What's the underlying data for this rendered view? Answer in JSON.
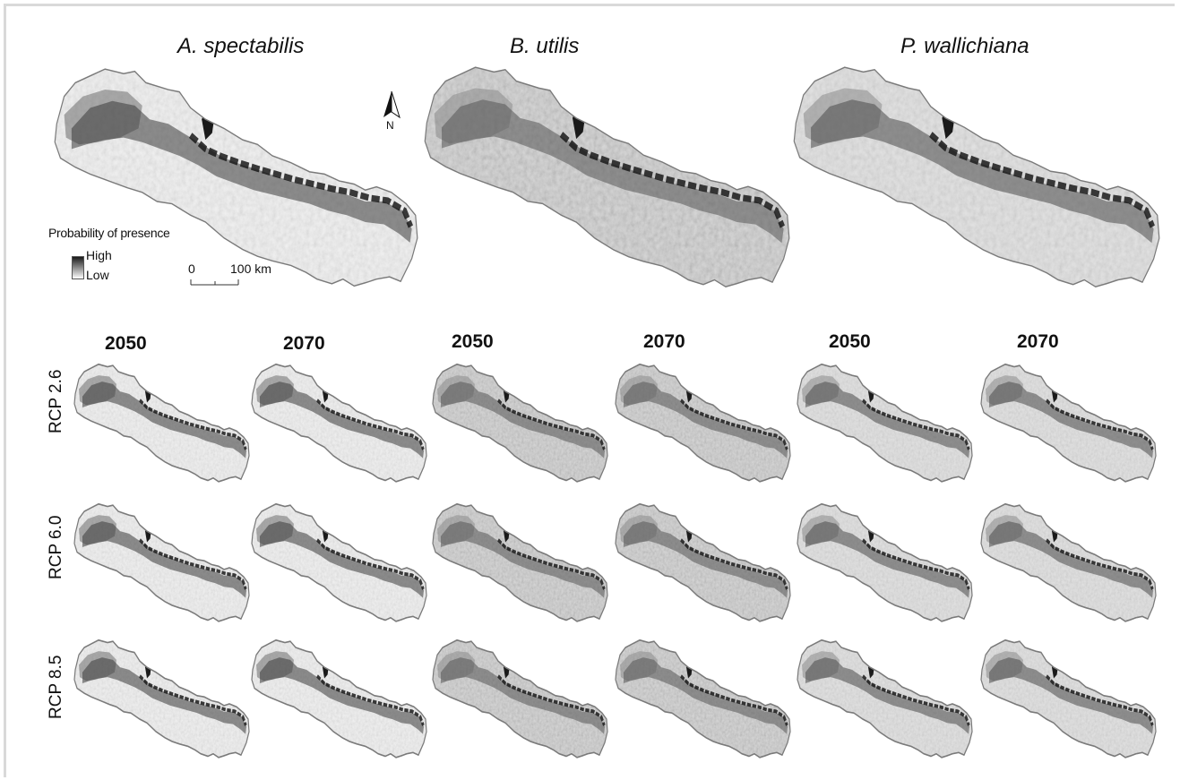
{
  "species": [
    {
      "name": "A. spectabilis",
      "tone": "#2b2b2b"
    },
    {
      "name": "B. utilis",
      "tone": "#4a4a4a"
    },
    {
      "name": "P. wallichiana",
      "tone": "#3a3a3a"
    }
  ],
  "years": [
    "2050",
    "2070",
    "2050",
    "2070",
    "2050",
    "2070"
  ],
  "scenarios": [
    "RCP 2.6",
    "RCP 6.0",
    "RCP 8.5"
  ],
  "legend": {
    "title": "Probability of presence",
    "high": "High",
    "low": "Low"
  },
  "scale_bar": {
    "start": "0",
    "end": "100 km"
  },
  "north_arrow": {
    "label": "N",
    "icon": "north-arrow-icon"
  },
  "colors": {
    "high": "#1a1a1a",
    "low": "#ffffff",
    "outline": "#7a7a7a"
  }
}
